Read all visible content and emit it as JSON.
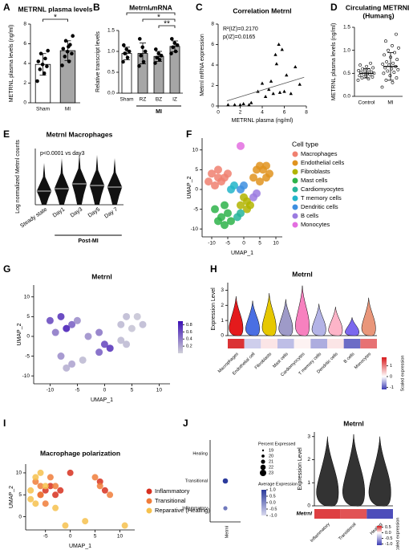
{
  "panel_labels": [
    "A",
    "B",
    "C",
    "D",
    "E",
    "F",
    "G",
    "H",
    "I",
    "J"
  ],
  "chart_data": [
    {
      "type": "bar",
      "title": "METRNL plasma levels",
      "ylabel": "METRNL plasma levels (ng/ml)",
      "categories": [
        "Sham",
        "MI"
      ],
      "values": [
        3.9,
        5.3
      ],
      "errors": [
        1.1,
        1.0
      ],
      "colors": [
        "#ffffff",
        "#a6a6a6"
      ],
      "points": [
        [
          2.2,
          3.0,
          3.4,
          3.7,
          3.9,
          4.2,
          4.5,
          5.0,
          5.3
        ],
        [
          3.8,
          4.2,
          4.7,
          5.0,
          5.2,
          5.5,
          5.9,
          6.3,
          6.8,
          5.7
        ]
      ],
      "ylim": [
        0,
        8
      ],
      "yticks": [
        0,
        2,
        4,
        6,
        8
      ],
      "signif": [
        {
          "label": "*",
          "between": [
            "Sham",
            "MI"
          ]
        }
      ]
    },
    {
      "type": "bar",
      "title": "Metrnl mRNA",
      "ylabel": "Relative transcript levels",
      "categories": [
        "Sham",
        "RZ",
        "BZ",
        "IZ"
      ],
      "values": [
        0.95,
        0.95,
        0.88,
        1.12
      ],
      "errors": [
        0.15,
        0.25,
        0.12,
        0.13
      ],
      "colors": [
        "#ffffff",
        "#a6a6a6",
        "#a6a6a6",
        "#a6a6a6"
      ],
      "points": [
        [
          0.75,
          0.85,
          0.95,
          1.0,
          1.05,
          1.15
        ],
        [
          0.65,
          0.75,
          0.9,
          1.0,
          1.1,
          1.3
        ],
        [
          0.72,
          0.8,
          0.85,
          0.9,
          0.95,
          1.05
        ],
        [
          0.95,
          1.0,
          1.1,
          1.15,
          1.2,
          1.3
        ]
      ],
      "ylim": [
        0,
        1.5
      ],
      "yticks": [
        {
          "value": 0,
          "label": "0.0"
        },
        {
          "value": 0.5,
          "label": "0.5"
        },
        {
          "value": 1,
          "label": "1.0"
        },
        {
          "value": 1.5,
          "label": "1.5"
        }
      ],
      "group": {
        "label": "MI",
        "categories": [
          "RZ",
          "BZ",
          "IZ"
        ]
      },
      "signif": [
        {
          "label": "*",
          "between": [
            "Sham",
            "IZ"
          ]
        },
        {
          "label": "*",
          "between": [
            "RZ",
            "IZ"
          ]
        },
        {
          "label": "**",
          "between": [
            "BZ",
            "IZ"
          ]
        }
      ]
    },
    {
      "type": "scatter",
      "title": "Correlation Metrnl",
      "xlabel": "METRNL plasma (ng/ml)",
      "ylabel": "Metrnl mRNA expression",
      "annotations": [
        "R²(IZ)=0.2170",
        "p(IZ)=0.0165"
      ],
      "x": [
        0.9,
        1.5,
        2.0,
        2.3,
        2.8,
        3.0,
        3.6,
        4.0,
        4.3,
        4.6,
        4.8,
        5.0,
        5.2,
        5.3,
        5.5,
        5.6,
        5.8,
        6.0,
        6.2,
        6.6,
        7.0,
        7.4
      ],
      "y": [
        0.1,
        0.1,
        0.1,
        0.2,
        0.1,
        0.3,
        1.4,
        2.2,
        0.9,
        1.6,
        2.4,
        1.2,
        5.0,
        4.1,
        6.0,
        1.3,
        5.5,
        1.4,
        3.0,
        1.2,
        3.8,
        2.1
      ],
      "trendline": {
        "x": [
          0.8,
          7.8
        ],
        "y": [
          0.5,
          2.8
        ]
      },
      "xlim": [
        0,
        8
      ],
      "xticks": [
        0,
        2,
        4,
        6,
        8
      ],
      "ylim": [
        0,
        8
      ],
      "yticks": [
        0,
        2,
        4,
        6,
        8
      ]
    },
    {
      "type": "dot",
      "title": [
        "Circulating METRNL",
        "(Humans)"
      ],
      "ylabel": "METRNL plasma levels (ng/ml)",
      "categories": [
        "Control",
        "MI"
      ],
      "values": [
        0.5,
        0.65
      ],
      "errors": [
        0.1,
        0.3
      ],
      "points": [
        [
          0.35,
          0.38,
          0.4,
          0.42,
          0.44,
          0.45,
          0.47,
          0.48,
          0.5,
          0.5,
          0.52,
          0.53,
          0.55,
          0.56,
          0.58,
          0.6,
          0.62,
          0.65,
          0.68,
          0.72
        ],
        [
          0.2,
          0.3,
          0.35,
          0.4,
          0.45,
          0.5,
          0.52,
          0.55,
          0.58,
          0.6,
          0.62,
          0.65,
          0.68,
          0.7,
          0.72,
          0.75,
          0.8,
          0.85,
          0.9,
          0.95,
          1.0,
          1.05,
          1.1,
          1.2,
          1.35
        ]
      ],
      "ylim": [
        0,
        1.5
      ],
      "yticks": [
        {
          "value": 0,
          "label": "0.0"
        },
        {
          "value": 0.5,
          "label": "0.5"
        },
        {
          "value": 1,
          "label": "1.0"
        },
        {
          "value": 1.5,
          "label": "1.5"
        }
      ],
      "signif": [
        {
          "label": "*",
          "between": [
            "MI",
            "MI"
          ]
        }
      ]
    },
    {
      "type": "strip",
      "title": "Metrnl Macrophages",
      "ylabel": "Log normalized Metrnl counts",
      "annotations": [
        "p<0.0001 vs day3"
      ],
      "categories": [
        "Steady state",
        "Day1",
        "Day3",
        "Day5",
        "Day 7"
      ],
      "values": [
        0.85,
        1.0,
        1.3,
        1.2,
        1.1
      ],
      "max": [
        2.6,
        2.9,
        3.2,
        3.1,
        2.9
      ],
      "group": {
        "label": "Post-MI",
        "categories": [
          "Day1",
          "Day3",
          "Day5",
          "Day 7"
        ]
      },
      "ylim": [
        0,
        3.5
      ]
    },
    {
      "type": "umap",
      "legend_title": "Cell type",
      "xlabel": "UMAP_1",
      "ylabel": "UMAP_2",
      "xlim": [
        -13,
        12
      ],
      "xticks": [
        -10,
        -5,
        0,
        5,
        10
      ],
      "ylim": [
        -12,
        13
      ],
      "yticks": [
        -10,
        -5,
        0,
        5,
        10
      ],
      "series": [
        {
          "name": "Macrophages",
          "color": "#f08070",
          "x": [
            -10,
            -8,
            -6,
            -9,
            -7,
            -5,
            -11,
            -8
          ],
          "values": [
            4,
            5,
            3,
            1,
            2,
            4,
            2,
            3
          ]
        },
        {
          "name": "Endothelial cells",
          "color": "#e0931e",
          "x": [
            4,
            6,
            7,
            5,
            3,
            7,
            8,
            5
          ],
          "values": [
            5,
            5,
            3,
            2,
            3,
            6,
            4,
            6
          ]
        },
        {
          "name": "Fibroblasts",
          "color": "#b1b400",
          "x": [
            0,
            1,
            2,
            1,
            -1
          ],
          "values": [
            -2,
            -3,
            -4,
            -5,
            -4
          ]
        },
        {
          "name": "Mast cells",
          "color": "#2eb34a",
          "x": [
            -9,
            -7,
            -5,
            -6,
            -8,
            -4,
            -6
          ],
          "values": [
            -5,
            -7,
            -6,
            -4,
            -8,
            -8,
            -9
          ]
        },
        {
          "name": "Cardiomyocytes",
          "color": "#27b59b",
          "x": [
            -2,
            -1
          ],
          "values": [
            -7,
            -6
          ]
        },
        {
          "name": "T memory cells",
          "color": "#22b5c9",
          "x": [
            -4,
            -3
          ],
          "values": [
            0,
            1
          ]
        },
        {
          "name": "Dendritic cells",
          "color": "#3d8fe0",
          "x": [
            -1,
            0
          ],
          "values": [
            0,
            1
          ]
        },
        {
          "name": "B cells",
          "color": "#9b7be0",
          "x": [
            3,
            4
          ],
          "values": [
            -2,
            -1
          ]
        },
        {
          "name": "Monocytes",
          "color": "#e36ee0",
          "x": [
            -1
          ],
          "values": [
            11
          ]
        }
      ]
    },
    {
      "type": "feature",
      "title": "Metrnl",
      "xlabel": "UMAP_1",
      "ylabel": "UMAP_2",
      "xlim": [
        -13,
        12
      ],
      "xticks": [
        -10,
        -5,
        0,
        5,
        10
      ],
      "ylim": [
        -12,
        13
      ],
      "yticks": [
        -10,
        -5,
        0,
        5,
        10
      ],
      "x": [
        -10,
        -8,
        -6,
        -9,
        -7,
        -5,
        4,
        6,
        7,
        5,
        3,
        -8,
        -6,
        -4,
        -7,
        0,
        1,
        -1,
        3,
        4,
        -3,
        -1
      ],
      "y": [
        4,
        5,
        3,
        1,
        2,
        4,
        5,
        5,
        3,
        2,
        3,
        -5,
        -7,
        -6,
        -8,
        -2,
        -3,
        -4,
        -1,
        -2,
        0,
        1
      ],
      "values": [
        0.6,
        0.7,
        0.5,
        0.4,
        0.8,
        0.3,
        0.1,
        0.05,
        0.1,
        0.05,
        0.1,
        0.3,
        0.2,
        0.1,
        0.15,
        0.6,
        0.7,
        0.5,
        0.1,
        0.1,
        0.3,
        0.4
      ],
      "colorbar": {
        "lim": [
          0,
          0.9
        ],
        "ticks": [
          0.2,
          0.4,
          0.6,
          0.8
        ]
      }
    },
    {
      "type": "violin",
      "title": "Metrnl",
      "ylabel": "Expression Level",
      "categories": [
        "Macrophages",
        "Endothelial cell",
        "Fibroblasts",
        "Mast cells",
        "Cardiomyocytes",
        "T memory cells",
        "Dendritic cells",
        "B cells",
        "Monocytes"
      ],
      "max": [
        2.6,
        2.3,
        2.8,
        2.4,
        3.3,
        2.1,
        1.9,
        1.2,
        2.5
      ],
      "colors": [
        "#e41a1c",
        "#4a6fe3",
        "#e6c800",
        "#9e9ac8",
        "#f781bf",
        "#b3b3e6",
        "#fdb4c8",
        "#7b68ee",
        "#e9967a"
      ],
      "ylim": [
        0,
        3.5
      ],
      "yticks": [
        0,
        1,
        2,
        3
      ],
      "heatmap": {
        "values": [
          1.6,
          -0.3,
          0.2,
          -0.4,
          0.1,
          -0.5,
          0.2,
          -0.9,
          1.1
        ],
        "colorbar": {
          "label": "Scaled expression",
          "lim": [
            -1.2,
            1.8
          ],
          "ticks": [
            -1,
            0,
            1
          ]
        }
      }
    },
    {
      "type": "umap",
      "title": "Macrophage polarization",
      "xlabel": "UMAP_1",
      "ylabel": "UMAP_2",
      "xlim": [
        -9,
        13
      ],
      "xticks": [
        -5,
        0,
        5,
        10
      ],
      "ylim": [
        -3,
        12
      ],
      "yticks": [
        0,
        5,
        10
      ],
      "series": [
        {
          "name": "Inflammatory",
          "color": "#d7301f",
          "x": [
            -5,
            -3,
            -4,
            -2,
            6,
            7,
            0,
            -6
          ],
          "values": [
            6,
            5,
            7,
            6,
            8,
            6,
            10,
            5
          ]
        },
        {
          "name": "Transitional",
          "color": "#f07c3a",
          "x": [
            -7,
            -6,
            -5,
            -4,
            -3,
            8,
            6,
            -6,
            5
          ],
          "values": [
            8,
            5,
            3,
            9,
            7,
            5,
            7,
            7,
            9
          ]
        },
        {
          "name": "Reparative (Healing)",
          "color": "#f6c14d",
          "x": [
            -8,
            -7,
            -6,
            -5,
            -3,
            3,
            11,
            -1,
            -7,
            -8
          ],
          "values": [
            6,
            3,
            10,
            7,
            2,
            -1,
            -2,
            -2,
            9,
            4
          ]
        }
      ]
    },
    {
      "type": "dotplot",
      "categories": [
        "Healing",
        "Transitional",
        "Inflammatory"
      ],
      "xlabel": "Metrnl",
      "percent": [
        null,
        22,
        21
      ],
      "average": [
        null,
        1,
        0.2
      ],
      "size_legend": {
        "title": "Percent Expressed",
        "values": [
          19,
          20,
          21,
          22,
          23
        ]
      },
      "color_legend": {
        "title": "Average Expression",
        "lim": [
          -1,
          1
        ],
        "ticks": [
          {
            "value": 1,
            "label": "1.0"
          },
          {
            "value": 0.5,
            "label": "0.5"
          },
          {
            "value": 0,
            "label": "0.0"
          },
          {
            "value": -0.5,
            "label": "-0.5"
          },
          {
            "value": -1,
            "label": "-1.0"
          }
        ]
      }
    },
    {
      "type": "violin",
      "title": "Metrnl",
      "ylabel": "Expression Level",
      "categories": [
        "Inflammatory",
        "Transitional",
        "Healing"
      ],
      "max": [
        3.0,
        3.1,
        3.0
      ],
      "ylim": [
        0,
        3.2
      ],
      "yticks": [
        0,
        1,
        2,
        3
      ],
      "heatmap": {
        "label": "Metrnl",
        "values": [
          0.5,
          0.45,
          -1.0
        ],
        "colorbar": {
          "label": "Scaled expression",
          "lim": [
            -1.1,
            0.6
          ],
          "ticks": [
            {
              "value": 0.5,
              "label": "0.5"
            },
            {
              "value": 0,
              "label": "0.0"
            },
            {
              "value": -0.5,
              "label": "-0.5"
            },
            {
              "value": -1,
              "label": "-1.0"
            }
          ]
        }
      }
    }
  ]
}
